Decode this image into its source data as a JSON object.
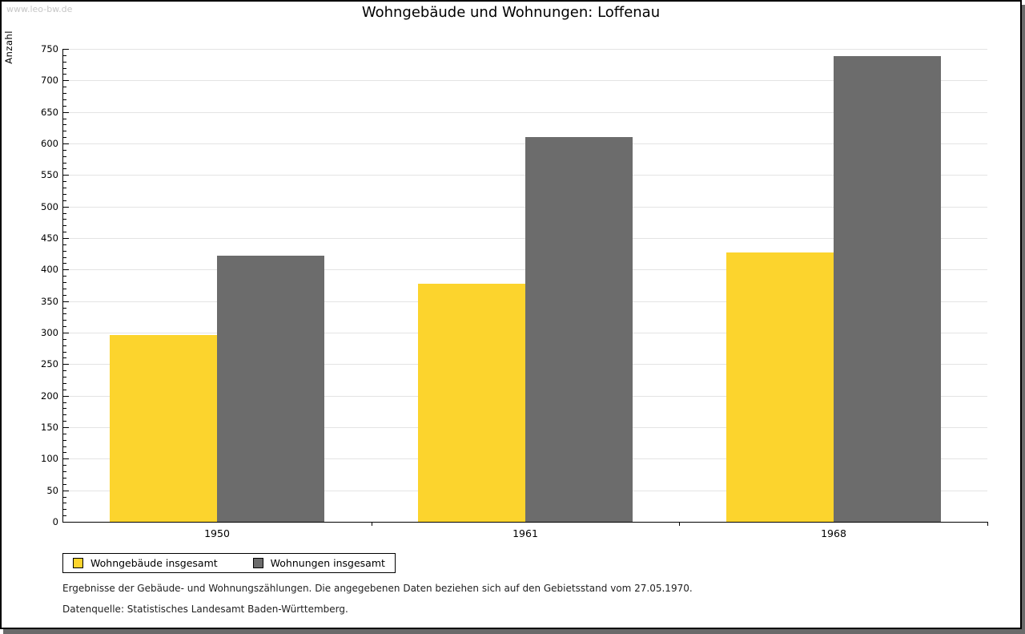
{
  "watermark": "www.leo-bw.de",
  "chart_data": {
    "type": "bar",
    "title": "Wohngebäude und Wohnungen: Loffenau",
    "ylabel": "Anzahl",
    "xlabel": "",
    "categories": [
      "1950",
      "1961",
      "1968"
    ],
    "series": [
      {
        "name": "Wohngebäude insgesamt",
        "color": "#FCD42D",
        "values": [
          296,
          378,
          427
        ]
      },
      {
        "name": "Wohnungen insgesamt",
        "color": "#6C6C6C",
        "values": [
          422,
          610,
          739
        ]
      }
    ],
    "ylim": [
      0,
      750
    ],
    "y_major_step": 50,
    "y_minor_step": 10,
    "grid": "horizontal-major",
    "gridline_color": "#e4e4e4",
    "legend_position": "bottom-left"
  },
  "notes": {
    "line1": "Ergebnisse der Gebäude- und Wohnungszählungen. Die angegebenen Daten beziehen sich auf den Gebietsstand vom 27.05.1970.",
    "line2": "Datenquelle: Statistisches Landesamt Baden-Württemberg."
  }
}
